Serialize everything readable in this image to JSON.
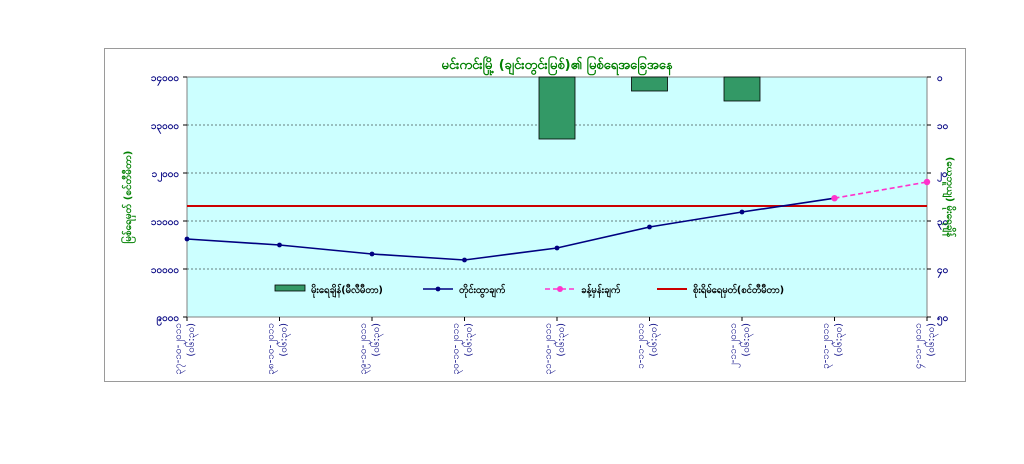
{
  "chart_data": {
    "type": "bar+line",
    "title": "မင်းကင်းမြို့ (ချင်းတွင်းမြစ်)၏ မြစ်ရေအခြေအနေ",
    "ylabel_left": "မြစ်ရေမှတ် (စင်တီမီတာ)",
    "ylabel_right": "(ယေဘူယျ) မိုးရေချိန်",
    "left_axis": {
      "min": 9000,
      "max": 13000,
      "step": 800,
      "ticks": [
        "၉၀၀၀",
        "၁၀၀၀၀",
        "၁၁၀၀၀",
        "၁၂၀၀၀",
        "၁၃၀၀၀",
        "၁၄၀၀၀"
      ]
    },
    "right_axis": {
      "min": 0,
      "max": 120,
      "inverted": true,
      "ticks": [
        "၀",
        "၁၀",
        "၂၀",
        "၃၀",
        "၄၀",
        "၅၀"
      ]
    },
    "categories": [
      [
        "၃၇-၁၀-၂၀၁၁",
        "(၀၆:၃၀)"
      ],
      [
        "၃၈-၁၀-၂၀၁၁",
        "(၀၆:၃၀)"
      ],
      [
        "၃၉-၁၀-၂၀၁၁",
        "(၀၆:၃၀)"
      ],
      [
        "၃၀-၁၀-၂၀၁၁",
        "(၀၆:၃၀)"
      ],
      [
        "၃၁-၁၀-၂၀၁၁",
        "(၀၆:၃၀)"
      ],
      [
        "၁-၁၁-၂၀၁၁",
        "(၀၆:၃၀)"
      ],
      [
        "၂-၁၁-၂၀၁၁",
        "(၀၆:၃၀)"
      ],
      [
        "၃-၁၁-၂၀၁၁",
        "(၀၆:၃၀)"
      ],
      [
        "၄-၁၁-၂၀၁၁",
        "(၀၆:၃၀)"
      ]
    ],
    "rainfall": [
      null,
      null,
      null,
      null,
      31,
      7,
      12,
      null,
      null
    ],
    "observed": [
      10300,
      10200,
      10050,
      9950,
      10150,
      10500,
      10750,
      10980,
      null
    ],
    "forecast": [
      null,
      null,
      null,
      null,
      null,
      null,
      null,
      10980,
      11250
    ],
    "danger_level": 10850,
    "legend": [
      {
        "label": "မိုးရေချိန်(မီလီမီတာ)",
        "kind": "bar"
      },
      {
        "label": "တိုင်းထွာချက်",
        "kind": "line"
      },
      {
        "label": "ခန့်မှန်းချက်",
        "kind": "dashed"
      },
      {
        "label": "စိုးရိမ်ရေမှတ်(စင်တီမီတာ)",
        "kind": "danger"
      }
    ],
    "colors": {
      "plot_bg": "#ccffff",
      "bar": "#339966",
      "observed": "#000080",
      "forecast": "#ff33cc",
      "danger": "#cc0000",
      "title": "#008000",
      "axis_text": "#000080"
    }
  }
}
